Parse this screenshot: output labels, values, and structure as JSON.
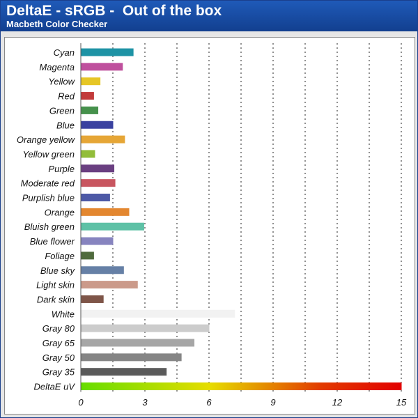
{
  "chart_data": {
    "type": "bar",
    "orientation": "horizontal",
    "title": "DeltaE - sRGB -  Out of the box",
    "subtitle": "Macbeth Color Checker",
    "xlim": [
      0,
      15
    ],
    "xticks": [
      0,
      3,
      6,
      9,
      12,
      15
    ],
    "grid": "vertical dotted",
    "categories": [
      "Cyan",
      "Magenta",
      "Yellow",
      "Red",
      "Green",
      "Blue",
      "Orange yellow",
      "Yellow green",
      "Purple",
      "Moderate red",
      "Purplish blue",
      "Orange",
      "Bluish green",
      "Blue flower",
      "Foliage",
      "Blue sky",
      "Light skin",
      "Dark skin",
      "White",
      "Gray 80",
      "Gray 65",
      "Gray 50",
      "Gray 35",
      "DeltaE uV"
    ],
    "values": [
      2.45,
      1.95,
      0.9,
      0.6,
      0.8,
      1.5,
      2.05,
      0.65,
      1.55,
      1.6,
      1.35,
      2.25,
      2.95,
      1.5,
      0.6,
      2.0,
      2.65,
      1.05,
      7.2,
      6.0,
      5.3,
      4.7,
      4.0,
      15
    ],
    "colors": [
      "#1e93a5",
      "#bf509d",
      "#e6c626",
      "#c23b3b",
      "#46914c",
      "#3a41a0",
      "#e6a636",
      "#92bd3a",
      "#6a3f81",
      "#c85660",
      "#4d59a6",
      "#e38730",
      "#5ec1a6",
      "#8784bf",
      "#4f6a3d",
      "#6680a6",
      "#cb9a8a",
      "#7e5548",
      "#f2f2f2",
      "#cccccc",
      "#a6a6a6",
      "#858585",
      "#5a5a5a",
      "gradient"
    ],
    "gradient_stops": [
      "#66dd00",
      "#e6dd00",
      "#e23a00",
      "#e20000"
    ]
  }
}
